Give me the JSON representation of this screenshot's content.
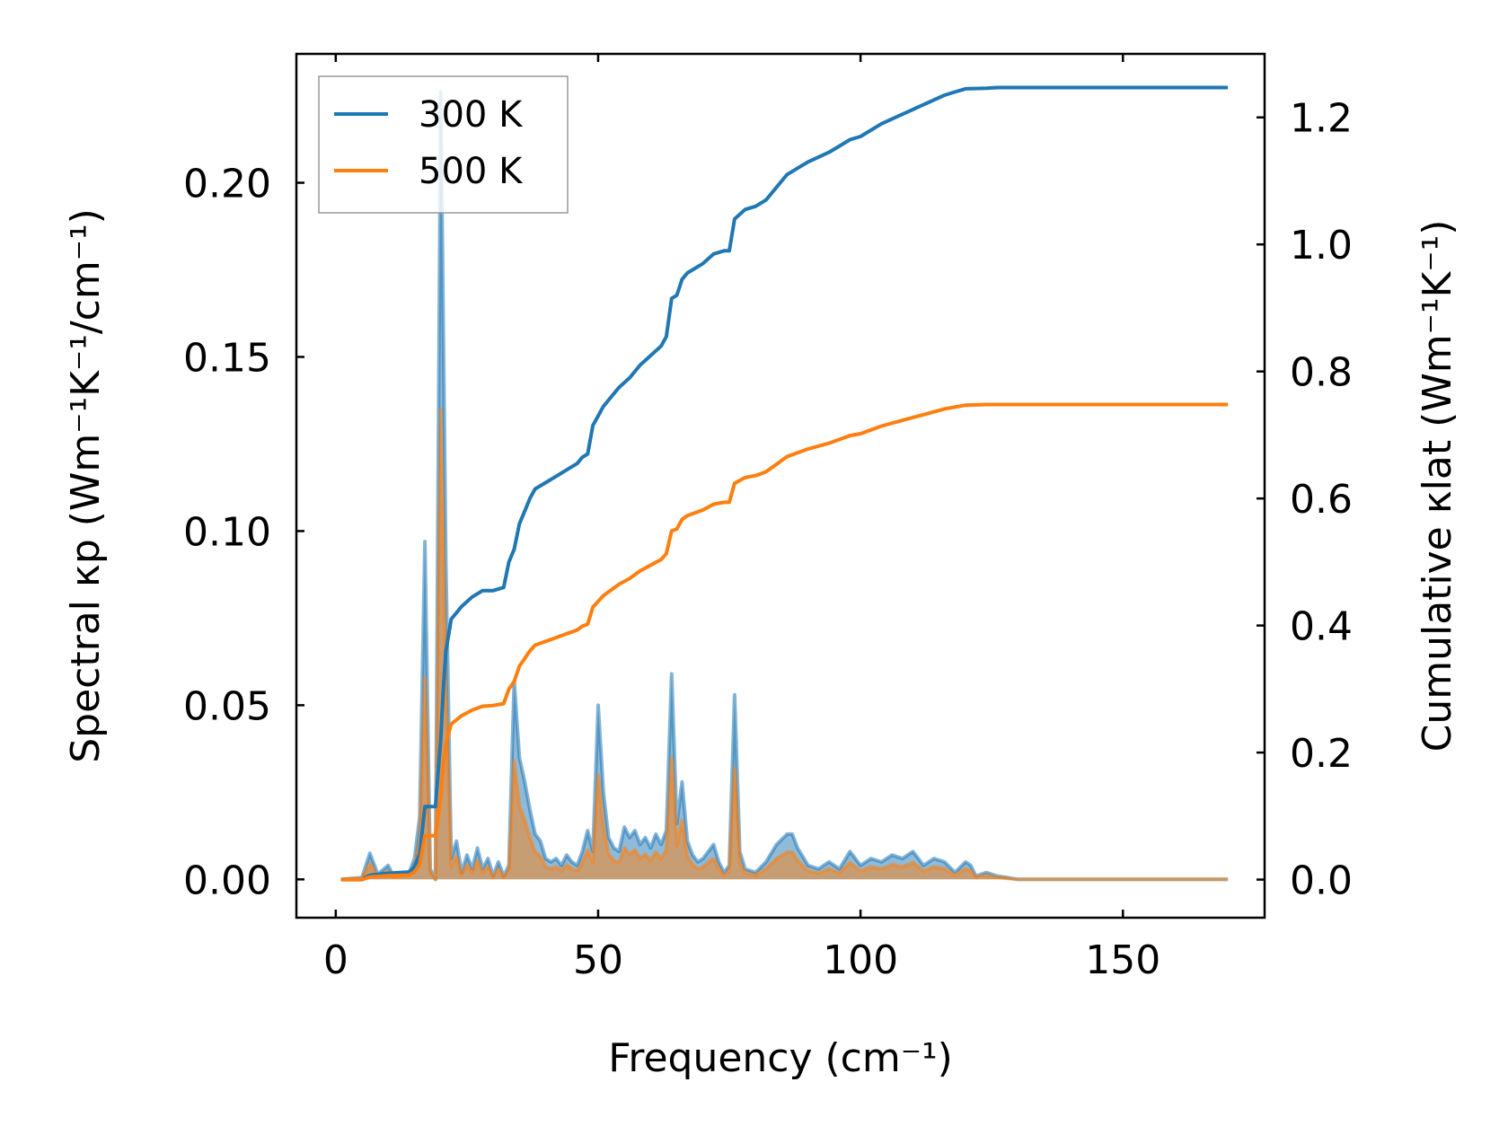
{
  "chart_data": {
    "type": "line",
    "x_axis": {
      "label": "Frequency (cm⁻¹)",
      "ticks": [
        0,
        50,
        100,
        150
      ],
      "tick_labels": [
        "0",
        "50",
        "100",
        "150"
      ],
      "range": [
        -7.5,
        177
      ]
    },
    "y_left": {
      "label": "Spectral κp (Wm⁻¹K⁻¹/cm⁻¹)",
      "ticks": [
        0.0,
        0.05,
        0.1,
        0.15,
        0.2
      ],
      "tick_labels": [
        "0.00",
        "0.05",
        "0.10",
        "0.15",
        "0.20"
      ],
      "range": [
        -0.011,
        0.237
      ]
    },
    "y_right": {
      "label": "Cumulative κlat (Wm⁻¹K⁻¹)",
      "ticks": [
        0.0,
        0.2,
        0.4,
        0.6,
        0.8,
        1.0,
        1.2
      ],
      "tick_labels": [
        "0.0",
        "0.2",
        "0.4",
        "0.6",
        "0.8",
        "1.0",
        "1.2"
      ],
      "range": [
        -0.06,
        1.3
      ]
    },
    "legend": {
      "position": "top-left",
      "entries": [
        {
          "label": "300 K",
          "color": "#1f77b4"
        },
        {
          "label": "500 K",
          "color": "#ff7f0e"
        }
      ]
    },
    "spectral_series": [
      {
        "name": "300 K spectral",
        "color": "#1f77b4",
        "x": [
          1,
          5,
          6.5,
          8,
          10,
          11,
          14,
          15,
          16,
          17,
          18,
          19,
          20,
          21,
          22,
          23,
          24,
          25,
          26,
          27,
          28,
          29,
          30,
          31,
          32,
          33,
          34,
          35,
          36,
          37,
          38,
          39,
          40,
          41,
          42,
          43,
          44,
          45,
          46,
          47,
          48,
          49,
          50,
          51,
          52,
          53,
          54,
          55,
          56,
          57,
          58,
          59,
          60,
          61,
          62,
          63,
          64,
          65,
          66,
          67,
          68,
          69,
          70,
          71,
          72,
          73,
          74,
          75,
          76,
          77,
          78,
          80,
          82,
          84,
          86,
          87,
          88,
          90,
          92,
          94,
          96,
          98,
          100,
          102,
          104,
          106,
          108,
          110,
          112,
          114,
          116,
          118,
          120,
          121,
          122,
          124,
          126,
          128,
          130,
          150,
          170
        ],
        "y": [
          0,
          0.0005,
          0.0075,
          0.0015,
          0.004,
          0.001,
          0.002,
          0.006,
          0.018,
          0.097,
          0.003,
          0.0,
          0.226,
          0.09,
          0.006,
          0.011,
          0.002,
          0.007,
          0.003,
          0.009,
          0.003,
          0.006,
          0.001,
          0.005,
          0.001,
          0.004,
          0.057,
          0.035,
          0.028,
          0.02,
          0.013,
          0.011,
          0.006,
          0.005,
          0.006,
          0.004,
          0.007,
          0.005,
          0.004,
          0.008,
          0.014,
          0.008,
          0.05,
          0.025,
          0.012,
          0.009,
          0.008,
          0.015,
          0.012,
          0.014,
          0.01,
          0.012,
          0.009,
          0.013,
          0.01,
          0.014,
          0.059,
          0.016,
          0.028,
          0.011,
          0.007,
          0.005,
          0.006,
          0.008,
          0.01,
          0.005,
          0.002,
          0.004,
          0.053,
          0.008,
          0.003,
          0.002,
          0.005,
          0.01,
          0.013,
          0.013,
          0.009,
          0.004,
          0.003,
          0.005,
          0.003,
          0.008,
          0.004,
          0.006,
          0.005,
          0.007,
          0.006,
          0.008,
          0.004,
          0.006,
          0.005,
          0.002,
          0.005,
          0.004,
          0.001,
          0.002,
          0.001,
          0.0005,
          0,
          0,
          0
        ]
      },
      {
        "name": "500 K spectral",
        "color": "#ff7f0e",
        "x": [
          1,
          5,
          6.5,
          8,
          10,
          11,
          14,
          15,
          16,
          17,
          18,
          19,
          20,
          21,
          22,
          23,
          24,
          25,
          26,
          27,
          28,
          29,
          30,
          31,
          32,
          33,
          34,
          35,
          36,
          37,
          38,
          39,
          40,
          41,
          42,
          43,
          44,
          45,
          46,
          47,
          48,
          49,
          50,
          51,
          52,
          53,
          54,
          55,
          56,
          57,
          58,
          59,
          60,
          61,
          62,
          63,
          64,
          65,
          66,
          67,
          68,
          69,
          70,
          71,
          72,
          73,
          74,
          75,
          76,
          77,
          78,
          80,
          82,
          84,
          86,
          87,
          88,
          90,
          92,
          94,
          96,
          98,
          100,
          102,
          104,
          106,
          108,
          110,
          112,
          114,
          116,
          118,
          120,
          121,
          122,
          124,
          126,
          128,
          130,
          150,
          170
        ],
        "y": [
          0,
          0.0003,
          0.0045,
          0.0009,
          0.0024,
          0.0006,
          0.0012,
          0.0036,
          0.011,
          0.058,
          0.0018,
          0.0,
          0.135,
          0.054,
          0.0036,
          0.0066,
          0.0012,
          0.0042,
          0.0018,
          0.0054,
          0.0018,
          0.0036,
          0.0006,
          0.003,
          0.0006,
          0.0024,
          0.034,
          0.021,
          0.017,
          0.012,
          0.0078,
          0.0066,
          0.0036,
          0.003,
          0.0036,
          0.0024,
          0.0042,
          0.003,
          0.0024,
          0.0048,
          0.0084,
          0.0048,
          0.03,
          0.015,
          0.0072,
          0.0054,
          0.0048,
          0.009,
          0.0072,
          0.0084,
          0.006,
          0.0072,
          0.0054,
          0.0078,
          0.006,
          0.0084,
          0.035,
          0.0096,
          0.017,
          0.0066,
          0.0042,
          0.003,
          0.0036,
          0.0048,
          0.006,
          0.003,
          0.0012,
          0.0024,
          0.032,
          0.0048,
          0.0018,
          0.0012,
          0.003,
          0.006,
          0.0078,
          0.0078,
          0.0054,
          0.0024,
          0.0018,
          0.003,
          0.0018,
          0.0048,
          0.0024,
          0.0036,
          0.003,
          0.0042,
          0.0036,
          0.0048,
          0.0024,
          0.0036,
          0.003,
          0.0012,
          0.003,
          0.0024,
          0.0006,
          0.0012,
          0.0006,
          0.0003,
          0,
          0,
          0
        ]
      }
    ],
    "cumulative_series": [
      {
        "name": "300 K",
        "color": "#1f77b4",
        "x": [
          1,
          5,
          6.5,
          10,
          14,
          15,
          16,
          17,
          18,
          19,
          20,
          20.5,
          21,
          22,
          24,
          26,
          28,
          30,
          32,
          33,
          34,
          35,
          36,
          37,
          38,
          40,
          42,
          44,
          46,
          47,
          48,
          49,
          50,
          51,
          52,
          54,
          56,
          58,
          60,
          62,
          63,
          64,
          65,
          66,
          67,
          68,
          70,
          72,
          74,
          75,
          76,
          78,
          80,
          82,
          84,
          86,
          88,
          90,
          94,
          96,
          98,
          100,
          104,
          108,
          112,
          116,
          118,
          120,
          124,
          126,
          130,
          150,
          170
        ],
        "y": [
          0.0,
          0.0,
          0.007,
          0.01,
          0.012,
          0.02,
          0.04,
          0.115,
          0.115,
          0.115,
          0.22,
          0.3,
          0.36,
          0.41,
          0.43,
          0.445,
          0.455,
          0.455,
          0.46,
          0.5,
          0.52,
          0.56,
          0.58,
          0.6,
          0.615,
          0.625,
          0.635,
          0.645,
          0.655,
          0.665,
          0.67,
          0.715,
          0.73,
          0.745,
          0.755,
          0.775,
          0.79,
          0.81,
          0.825,
          0.84,
          0.855,
          0.915,
          0.92,
          0.945,
          0.955,
          0.96,
          0.97,
          0.985,
          0.99,
          0.99,
          1.04,
          1.055,
          1.06,
          1.07,
          1.09,
          1.11,
          1.12,
          1.13,
          1.145,
          1.155,
          1.165,
          1.17,
          1.19,
          1.205,
          1.22,
          1.235,
          1.24,
          1.245,
          1.246,
          1.247,
          1.247,
          1.247,
          1.247
        ]
      },
      {
        "name": "500 K",
        "color": "#ff7f0e",
        "x": [
          1,
          5,
          6.5,
          10,
          14,
          15,
          16,
          17,
          18,
          19,
          20,
          20.5,
          21,
          22,
          24,
          26,
          28,
          30,
          32,
          33,
          34,
          35,
          36,
          37,
          38,
          40,
          42,
          44,
          46,
          47,
          48,
          49,
          50,
          51,
          52,
          54,
          56,
          58,
          60,
          62,
          63,
          64,
          65,
          66,
          67,
          68,
          70,
          72,
          74,
          75,
          76,
          78,
          80,
          82,
          84,
          86,
          88,
          90,
          94,
          96,
          98,
          100,
          104,
          108,
          112,
          116,
          118,
          120,
          124,
          126,
          130,
          150,
          170
        ],
        "y": [
          0.0,
          0.0,
          0.004,
          0.006,
          0.007,
          0.012,
          0.024,
          0.069,
          0.069,
          0.069,
          0.13,
          0.18,
          0.215,
          0.245,
          0.258,
          0.267,
          0.273,
          0.274,
          0.277,
          0.3,
          0.312,
          0.336,
          0.348,
          0.36,
          0.369,
          0.375,
          0.381,
          0.387,
          0.393,
          0.399,
          0.402,
          0.429,
          0.438,
          0.447,
          0.453,
          0.465,
          0.474,
          0.486,
          0.495,
          0.504,
          0.513,
          0.549,
          0.552,
          0.567,
          0.573,
          0.576,
          0.582,
          0.591,
          0.594,
          0.594,
          0.624,
          0.633,
          0.636,
          0.642,
          0.654,
          0.666,
          0.672,
          0.678,
          0.687,
          0.693,
          0.699,
          0.702,
          0.714,
          0.723,
          0.732,
          0.741,
          0.744,
          0.747,
          0.748,
          0.748,
          0.748,
          0.748,
          0.748
        ]
      }
    ]
  }
}
